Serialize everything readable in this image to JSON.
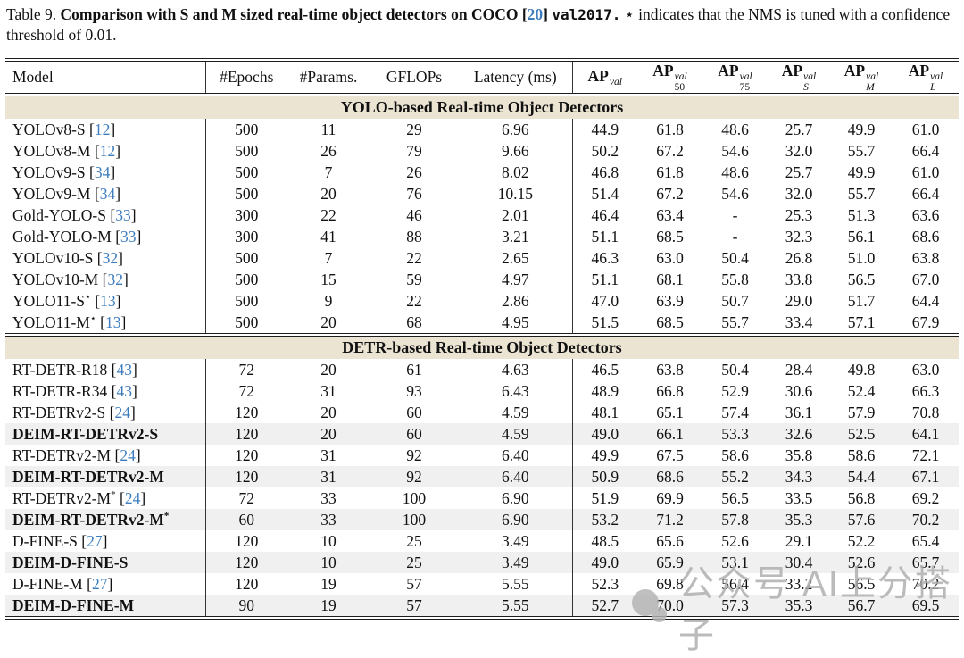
{
  "caption": {
    "label": "Table 9.",
    "bold_part": "Comparison with S and M sized real-time object detectors on COCO",
    "cite_open": "[",
    "cite": "20",
    "cite_close": "]",
    "code_part": "val2017.",
    "star_symbol": "⋆",
    "rest": "indicates that the NMS is tuned with a confidence threshold of 0.01."
  },
  "colors": {
    "citation_blue": "#3d7dbe",
    "section_header_bg": "#ebe4d3",
    "shaded_row_bg": "#f0f0f0",
    "watermark_gray": "#adadad"
  },
  "watermark": {
    "icon": "chat-bubbles-logo",
    "text": "公众号 AI上分搭子"
  },
  "table": {
    "cite_open": "[",
    "cite_close": "]",
    "columns": [
      {
        "label": "Model"
      },
      {
        "label": "#Epochs"
      },
      {
        "label": "#Params."
      },
      {
        "label": "GFLOPs"
      },
      {
        "label": "Latency (ms)"
      },
      {
        "label": "AP",
        "sup": "val"
      },
      {
        "label": "AP",
        "sup": "val",
        "sub": "50"
      },
      {
        "label": "AP",
        "sup": "val",
        "sub": "75"
      },
      {
        "label": "AP",
        "sup": "val",
        "sub": "S"
      },
      {
        "label": "AP",
        "sup": "val",
        "sub": "M"
      },
      {
        "label": "AP",
        "sup": "val",
        "sub": "L"
      }
    ],
    "sections": [
      {
        "title": "YOLO-based Real-time Object Detectors",
        "rows": [
          {
            "name": "YOLOv8-S",
            "cite": "12",
            "values": [
              "500",
              "11",
              "29",
              "6.96",
              "44.9",
              "61.8",
              "48.6",
              "25.7",
              "49.9",
              "61.0"
            ]
          },
          {
            "name": "YOLOv8-M",
            "cite": "12",
            "values": [
              "500",
              "26",
              "79",
              "9.66",
              "50.2",
              "67.2",
              "54.6",
              "32.0",
              "55.7",
              "66.4"
            ]
          },
          {
            "name": "YOLOv9-S",
            "cite": "34",
            "values": [
              "500",
              "7",
              "26",
              "8.02",
              "46.8",
              "61.8",
              "48.6",
              "25.7",
              "49.9",
              "61.0"
            ]
          },
          {
            "name": "YOLOv9-M",
            "cite": "34",
            "values": [
              "500",
              "20",
              "76",
              "10.15",
              "51.4",
              "67.2",
              "54.6",
              "32.0",
              "55.7",
              "66.4"
            ]
          },
          {
            "name": "Gold-YOLO-S",
            "cite": "33",
            "values": [
              "300",
              "22",
              "46",
              "2.01",
              "46.4",
              "63.4",
              "-",
              "25.3",
              "51.3",
              "63.6"
            ]
          },
          {
            "name": "Gold-YOLO-M",
            "cite": "33",
            "values": [
              "300",
              "41",
              "88",
              "3.21",
              "51.1",
              "68.5",
              "-",
              "32.3",
              "56.1",
              "68.6"
            ]
          },
          {
            "name": "YOLOv10-S",
            "cite": "32",
            "values": [
              "500",
              "7",
              "22",
              "2.65",
              "46.3",
              "63.0",
              "50.4",
              "26.8",
              "51.0",
              "63.8"
            ]
          },
          {
            "name": "YOLOv10-M",
            "cite": "32",
            "values": [
              "500",
              "15",
              "59",
              "4.97",
              "51.1",
              "68.1",
              "55.8",
              "33.8",
              "56.5",
              "67.0"
            ]
          },
          {
            "name": "YOLO11-S",
            "star": "⋆",
            "cite": "13",
            "values": [
              "500",
              "9",
              "22",
              "2.86",
              "47.0",
              "63.9",
              "50.7",
              "29.0",
              "51.7",
              "64.4"
            ]
          },
          {
            "name": "YOLO11-M",
            "star": "⋆",
            "cite": "13",
            "values": [
              "500",
              "20",
              "68",
              "4.95",
              "51.5",
              "68.5",
              "55.7",
              "33.4",
              "57.1",
              "67.9"
            ]
          }
        ]
      },
      {
        "title": "DETR-based Real-time Object Detectors",
        "rows": [
          {
            "name": "RT-DETR-R18",
            "cite": "43",
            "values": [
              "72",
              "20",
              "61",
              "4.63",
              "46.5",
              "63.8",
              "50.4",
              "28.4",
              "49.8",
              "63.0"
            ]
          },
          {
            "name": "RT-DETR-R34",
            "cite": "43",
            "values": [
              "72",
              "31",
              "93",
              "6.43",
              "48.9",
              "66.8",
              "52.9",
              "30.6",
              "52.4",
              "66.3"
            ]
          },
          {
            "name": "RT-DETRv2-S",
            "cite": "24",
            "values": [
              "120",
              "20",
              "60",
              "4.59",
              "48.1",
              "65.1",
              "57.4",
              "36.1",
              "57.9",
              "70.8"
            ]
          },
          {
            "name": "DEIM-RT-DETRv2-S",
            "bold": true,
            "shaded": true,
            "values": [
              "120",
              "20",
              "60",
              "4.59",
              "49.0",
              "66.1",
              "53.3",
              "32.6",
              "52.5",
              "64.1"
            ]
          },
          {
            "name": "RT-DETRv2-M",
            "cite": "24",
            "values": [
              "120",
              "31",
              "92",
              "6.40",
              "49.9",
              "67.5",
              "58.6",
              "35.8",
              "58.6",
              "72.1"
            ]
          },
          {
            "name": "DEIM-RT-DETRv2-M",
            "bold": true,
            "shaded": true,
            "values": [
              "120",
              "31",
              "92",
              "6.40",
              "50.9",
              "68.6",
              "55.2",
              "34.3",
              "54.4",
              "67.1"
            ]
          },
          {
            "name": "RT-DETRv2-M",
            "star": "*",
            "cite": "24",
            "values": [
              "72",
              "33",
              "100",
              "6.90",
              "51.9",
              "69.9",
              "56.5",
              "33.5",
              "56.8",
              "69.2"
            ]
          },
          {
            "name": "DEIM-RT-DETRv2-M",
            "star": "*",
            "bold": true,
            "shaded": true,
            "values": [
              "60",
              "33",
              "100",
              "6.90",
              "53.2",
              "71.2",
              "57.8",
              "35.3",
              "57.6",
              "70.2"
            ]
          },
          {
            "name": "D-FINE-S",
            "cite": "27",
            "values": [
              "120",
              "10",
              "25",
              "3.49",
              "48.5",
              "65.6",
              "52.6",
              "29.1",
              "52.2",
              "65.4"
            ]
          },
          {
            "name": "DEIM-D-FINE-S",
            "bold": true,
            "shaded": true,
            "values": [
              "120",
              "10",
              "25",
              "3.49",
              "49.0",
              "65.9",
              "53.1",
              "30.4",
              "52.6",
              "65.7"
            ]
          },
          {
            "name": "D-FINE-M",
            "cite": "27",
            "values": [
              "120",
              "19",
              "57",
              "5.55",
              "52.3",
              "69.8",
              "56.4",
              "33.2",
              "56.5",
              "70.2"
            ]
          },
          {
            "name": "DEIM-D-FINE-M",
            "bold": true,
            "shaded": true,
            "values": [
              "90",
              "19",
              "57",
              "5.55",
              "52.7",
              "70.0",
              "57.3",
              "35.3",
              "56.7",
              "69.5"
            ]
          }
        ]
      }
    ]
  }
}
